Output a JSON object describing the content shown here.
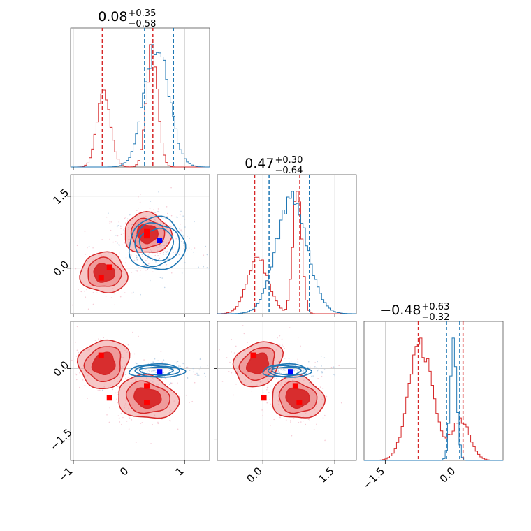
{
  "figure": {
    "kind": "corner plot",
    "colors": {
      "red": "#d62728",
      "red_fill_dark": "#d62728",
      "red_fill_light": "#ee9999",
      "blue": "#1f77b4",
      "truth_blue": "#0000ff",
      "truth_red": "#ff0000",
      "grid": "#b0b0b0"
    }
  },
  "chart_data": {
    "type": "corner",
    "parameters": [
      "p1",
      "p2",
      "p3"
    ],
    "ranges": {
      "p1": [
        -1.05,
        1.45
      ],
      "p2": [
        -0.95,
        1.95
      ],
      "p3": [
        -1.95,
        1.0
      ]
    },
    "titles": [
      {
        "value": "0.08",
        "plus": "+0.35",
        "minus": "−0.58"
      },
      {
        "value": "0.47",
        "plus": "+0.30",
        "minus": "−0.64"
      },
      {
        "value": "−0.48",
        "plus": "+0.63",
        "minus": "−0.32"
      }
    ],
    "xticks": {
      "p1": {
        "values": [
          -1,
          0,
          1
        ],
        "labels": [
          "−1",
          "0",
          "1"
        ]
      },
      "p2": {
        "values": [
          0.0,
          1.5
        ],
        "labels": [
          "0.0",
          "1.5"
        ]
      },
      "p3": {
        "values": [
          -1.5,
          0.0
        ],
        "labels": [
          "−1.5",
          "0.0"
        ]
      }
    },
    "yticks": {
      "p2": {
        "values": [
          1.5,
          0.0
        ],
        "labels": [
          "1.5",
          "0.0"
        ]
      },
      "p3": {
        "values": [
          0.0,
          -1.5
        ],
        "labels": [
          "0.0",
          "−1.5"
        ]
      }
    },
    "quantile_lines": {
      "red": {
        "p1": [
          -0.48,
          0.43
        ],
        "p2": [
          -0.17,
          0.77
        ],
        "p3": [
          -0.8,
          0.15
        ]
      },
      "blue": {
        "p1": [
          0.28,
          0.8
        ],
        "p2": [
          0.13,
          0.97
        ],
        "p3": [
          -0.2,
          0.08
        ]
      }
    },
    "truth_markers": {
      "red": [
        {
          "p1": -0.5,
          "p2": -0.2,
          "p3": 0.28
        },
        {
          "p1": -0.35,
          "p2": 0.02,
          "p3": -0.62
        },
        {
          "p1": 0.32,
          "p2": 0.68,
          "p3": -0.37
        },
        {
          "p1": 0.32,
          "p2": 0.76,
          "p3": -0.72
        }
      ],
      "blue": [
        {
          "p1": 0.55,
          "p2": 0.58,
          "p3": -0.07
        }
      ]
    },
    "series": [
      {
        "color": "red",
        "modes": [
          {
            "p1": -0.45,
            "p2": -0.1,
            "p3": 0.1,
            "w": 0.33
          },
          {
            "p1": 0.33,
            "p2": 0.72,
            "p3": -0.62,
            "w": 0.67
          }
        ],
        "marginal_peaks": {
          "p1": [
            -0.45,
            0.42
          ],
          "p2": [
            -0.1,
            0.72
          ],
          "p3": [
            -0.75,
            0.1
          ]
        }
      },
      {
        "color": "blue",
        "modes": [
          {
            "p1": 0.5,
            "p2": 0.5,
            "p3": -0.05,
            "w": 1.0
          }
        ],
        "marginal_peaks": {
          "p1": [
            0.5
          ],
          "p2": [
            0.6
          ],
          "p3": [
            -0.05
          ]
        }
      }
    ],
    "grid": true
  }
}
